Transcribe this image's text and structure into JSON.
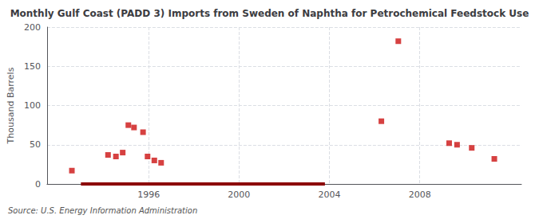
{
  "chart_data": {
    "type": "scatter",
    "title": "Monthly Gulf Coast (PADD 3) Imports from Sweden of Naphtha for Petrochemical Feedstock Use",
    "ylabel": "Thousand Barrels",
    "source": "Source: U.S. Energy Information Administration",
    "xlim": [
      1991.5,
      2012.5
    ],
    "xticks": [
      1996,
      2000,
      2004,
      2008
    ],
    "ylim": [
      0,
      200
    ],
    "yticks": [
      0,
      50,
      100,
      150,
      200
    ],
    "grid": true,
    "series": [
      {
        "type": "scatter",
        "color": "#cc1111",
        "marker": "square",
        "x": [
          1992.6,
          1994.2,
          1994.55,
          1994.85,
          1995.1,
          1995.35,
          1995.75,
          1995.95,
          1996.25,
          1996.55,
          2006.3,
          2007.05,
          2009.3,
          2009.65,
          2010.3,
          2011.3
        ],
        "values": [
          17,
          37,
          35,
          40,
          75,
          72,
          66,
          35,
          30,
          27,
          80,
          182,
          52,
          50,
          46,
          32
        ]
      },
      {
        "type": "line",
        "color": "#8b0000",
        "line_style": "solid",
        "x": [
          1993.0,
          2003.8
        ],
        "values": [
          0,
          0
        ]
      }
    ]
  }
}
